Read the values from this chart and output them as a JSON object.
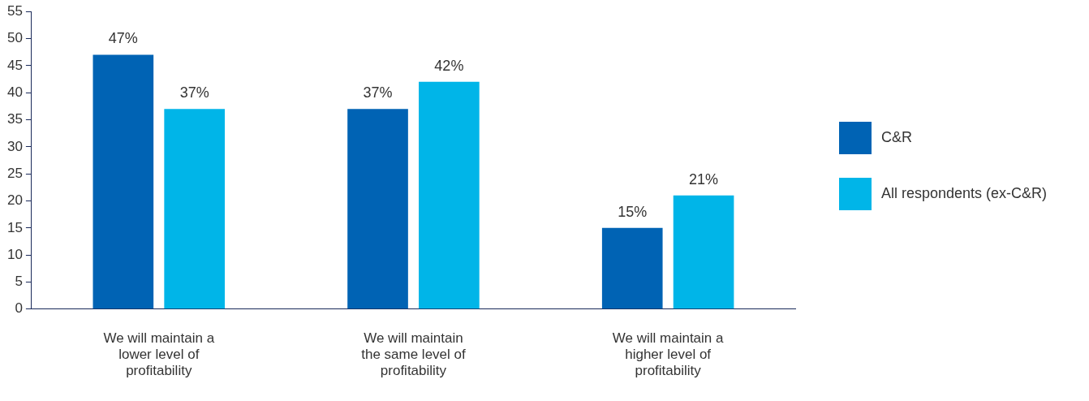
{
  "chart_data": {
    "type": "bar",
    "categories": [
      "We will maintain a lower level of profitability",
      "We will maintain the same level of profitability",
      "We will maintain a higher level of profitability"
    ],
    "series": [
      {
        "name": "C&R",
        "color": "#0063b4",
        "values": [
          47,
          37,
          15
        ],
        "value_labels": [
          "47%",
          "37%",
          "15%"
        ]
      },
      {
        "name": "All respondents (ex-C&R)",
        "color": "#00b5e8",
        "values": [
          37,
          42,
          21
        ],
        "value_labels": [
          "37%",
          "42%",
          "21%"
        ]
      }
    ],
    "ylim": [
      0,
      55
    ],
    "yticks": [
      0,
      5,
      10,
      15,
      20,
      25,
      30,
      35,
      40,
      45,
      50,
      55
    ],
    "grid": false,
    "legend": "right"
  }
}
